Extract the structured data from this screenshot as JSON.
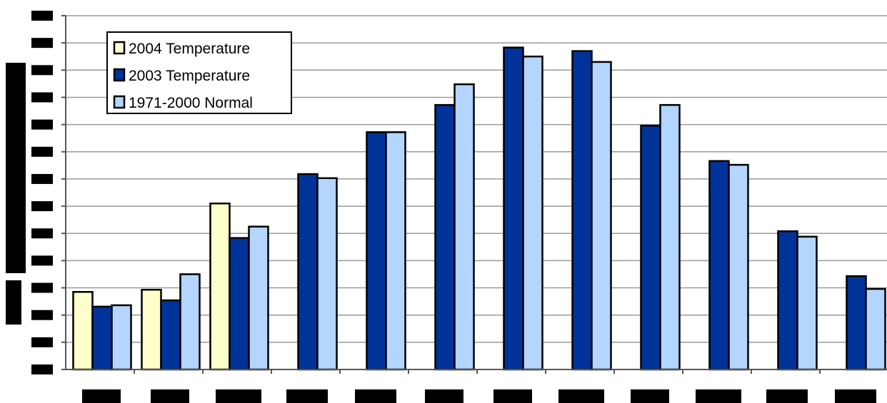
{
  "chart_data": {
    "type": "bar",
    "title": "",
    "xlabel": "",
    "ylabel": "",
    "categories": [
      "",
      "",
      "",
      "",
      "",
      "",
      "",
      "",
      "",
      "",
      "",
      ""
    ],
    "ylim": [
      0,
      13
    ],
    "grid": true,
    "legend_position": "top-left",
    "series": [
      {
        "name": "2004 Temperature",
        "color": "#ffffcc",
        "values": [
          2.85,
          2.93,
          6.1,
          null,
          null,
          null,
          null,
          null,
          null,
          null,
          null,
          null
        ]
      },
      {
        "name": "2003 Temperature",
        "color": "#003399",
        "values": [
          2.31,
          2.54,
          4.83,
          7.18,
          8.72,
          9.72,
          11.83,
          11.7,
          8.96,
          7.66,
          5.08,
          3.43
        ]
      },
      {
        "name": "1971-2000 Normal",
        "color": "#b3d5ff",
        "values": [
          2.36,
          3.5,
          5.25,
          7.03,
          8.72,
          10.48,
          11.5,
          11.3,
          9.72,
          7.52,
          4.88,
          2.96
        ]
      }
    ]
  }
}
